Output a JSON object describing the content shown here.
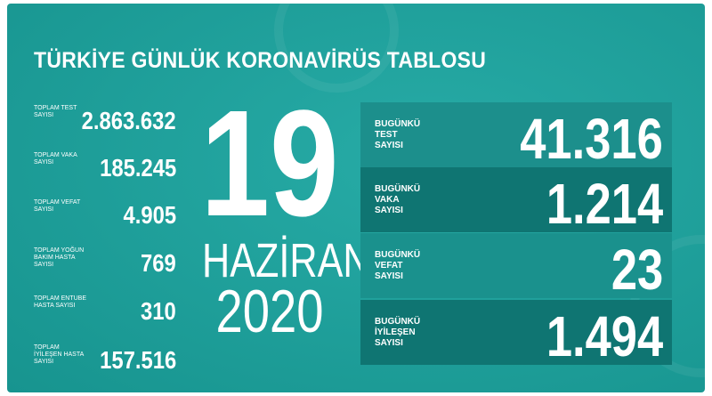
{
  "title": "TÜRKİYE GÜNLÜK KORONAVİRÜS TABLOSU",
  "totals": [
    {
      "label": "TOPLAM TEST SAYISI",
      "value": "2.863.632"
    },
    {
      "label": "TOPLAM VAKA SAYISI",
      "value": "185.245"
    },
    {
      "label": "TOPLAM VEFAT SAYISI",
      "value": "4.905"
    },
    {
      "label": "TOPLAM YOĞUN BAKIM HASTA SAYISI",
      "value": "769"
    },
    {
      "label": "TOPLAM ENTUBE HASTA SAYISI",
      "value": "310"
    },
    {
      "label": "TOPLAM İYİLEŞEN HASTA SAYISI",
      "value": "157.516"
    }
  ],
  "date": {
    "day": "19",
    "month": "HAZİRAN",
    "year": "2020"
  },
  "today": [
    {
      "label": "BUGÜNKÜ TEST SAYISI",
      "value": "41.316"
    },
    {
      "label": "BUGÜNKÜ VAKA SAYISI",
      "value": "1.214"
    },
    {
      "label": "BUGÜNKÜ VEFAT SAYISI",
      "value": "23"
    },
    {
      "label": "BUGÜNKÜ İYİLEŞEN SAYISI",
      "value": "1.494"
    }
  ],
  "colors": {
    "background": "#1fa3a0",
    "box_light": "#1c8f8c",
    "box_dark": "#0f7572"
  }
}
